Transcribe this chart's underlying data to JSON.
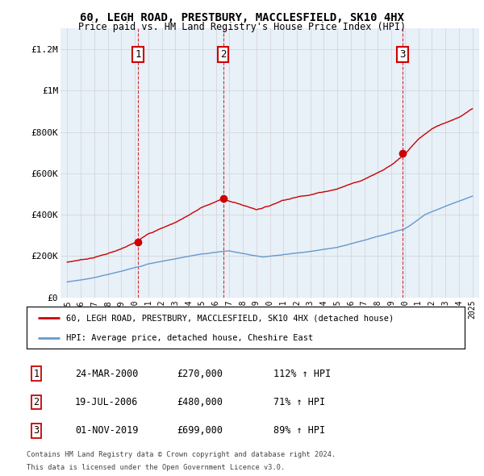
{
  "title": "60, LEGH ROAD, PRESTBURY, MACCLESFIELD, SK10 4HX",
  "subtitle": "Price paid vs. HM Land Registry's House Price Index (HPI)",
  "sale_dates_float": [
    2000.23,
    2006.54,
    2019.83
  ],
  "sale_prices": [
    270000,
    480000,
    699000
  ],
  "sale_labels": [
    "1",
    "2",
    "3"
  ],
  "sale_label_dates_display": [
    "24-MAR-2000",
    "19-JUL-2006",
    "01-NOV-2019"
  ],
  "sale_prices_display": [
    "£270,000",
    "£480,000",
    "£699,000"
  ],
  "sale_hpi_pct": [
    "112% ↑ HPI",
    "71% ↑ HPI",
    "89% ↑ HPI"
  ],
  "legend_line1": "60, LEGH ROAD, PRESTBURY, MACCLESFIELD, SK10 4HX (detached house)",
  "legend_line2": "HPI: Average price, detached house, Cheshire East",
  "footer1": "Contains HM Land Registry data © Crown copyright and database right 2024.",
  "footer2": "This data is licensed under the Open Government Licence v3.0.",
  "red_color": "#cc0000",
  "blue_color": "#6699cc",
  "chart_bg": "#e8f0f8",
  "ylim": [
    0,
    1300000
  ],
  "yticks": [
    0,
    200000,
    400000,
    600000,
    800000,
    1000000,
    1200000
  ],
  "ytick_labels": [
    "£0",
    "£200K",
    "£400K",
    "£600K",
    "£800K",
    "£1M",
    "£1.2M"
  ],
  "background_color": "#ffffff",
  "grid_color": "#cccccc",
  "hpi_control_x": [
    1995,
    1997,
    1999,
    2001,
    2003,
    2005,
    2007,
    2008.5,
    2009.5,
    2011,
    2013,
    2015,
    2017,
    2019,
    2020,
    2021.5,
    2023,
    2025
  ],
  "hpi_control_y": [
    75000,
    95000,
    125000,
    160000,
    185000,
    210000,
    225000,
    205000,
    195000,
    205000,
    220000,
    240000,
    275000,
    310000,
    330000,
    400000,
    440000,
    490000
  ],
  "red_control_x": [
    1995,
    1997,
    1999,
    2000.23,
    2001,
    2003,
    2005,
    2006.54,
    2008,
    2009,
    2010,
    2011,
    2013,
    2015,
    2017,
    2019,
    2019.83,
    2021,
    2022,
    2023,
    2024,
    2025
  ],
  "red_control_y": [
    170000,
    195000,
    235000,
    270000,
    310000,
    365000,
    440000,
    480000,
    450000,
    430000,
    450000,
    480000,
    510000,
    540000,
    590000,
    660000,
    699000,
    780000,
    830000,
    860000,
    890000,
    930000
  ]
}
